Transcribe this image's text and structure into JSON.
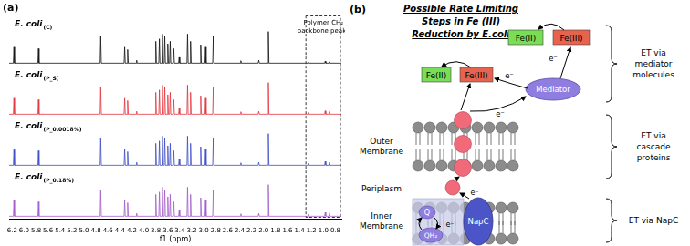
{
  "chart_data": {
    "type": "line",
    "panel_label": "(a)",
    "x_label": "f1 (ppm)",
    "x": [
      6.25,
      6.18,
      6.17,
      6.16,
      5.77,
      5.76,
      5.75,
      4.73,
      4.72,
      4.71,
      4.33,
      4.32,
      4.31,
      4.28,
      4.27,
      4.26,
      4.13,
      4.12,
      4.11,
      3.81,
      3.8,
      3.79,
      3.75,
      3.74,
      3.73,
      3.7,
      3.69,
      3.68,
      3.66,
      3.65,
      3.64,
      3.61,
      3.6,
      3.59,
      3.57,
      3.56,
      3.55,
      3.51,
      3.5,
      3.49,
      3.42,
      3.41,
      3.4,
      3.28,
      3.27,
      3.26,
      3.23,
      3.22,
      3.21,
      3.06,
      3.05,
      3.04,
      2.98,
      2.97,
      2.96,
      2.85,
      2.84,
      2.83,
      2.39,
      2.38,
      2.37,
      2.09,
      2.08,
      2.07,
      1.93,
      1.92,
      1.91,
      1.26,
      1.25,
      1.24,
      0.98,
      0.97,
      0.96,
      0.91,
      0.9,
      0.89,
      0.7
    ],
    "xlim": [
      6.25,
      0.7
    ],
    "xticks": [
      6.2,
      {
        "value": 6,
        "label": "6.0"
      },
      5.8,
      5.6,
      5.4,
      5.2,
      {
        "value": 5,
        "label": "5.0"
      },
      4.8,
      4.6,
      4.4,
      4.2,
      {
        "value": 4,
        "label": "4.0"
      },
      3.8,
      3.6,
      3.4,
      3.2,
      {
        "value": 3,
        "label": "3.0"
      },
      2.8,
      2.6,
      2.4,
      2.2,
      {
        "value": 2,
        "label": "2.0"
      },
      1.8,
      1.6,
      1.4,
      1.2,
      {
        "value": 1,
        "label": "1.0"
      },
      0.8
    ],
    "ylim": [
      -5,
      100
    ],
    "tick_labels": "x",
    "grid": false,
    "marker": "none",
    "series": [
      {
        "name": "E. coli(P_0.18%)",
        "color": "#a25bc9",
        "values": [
          0,
          0,
          33,
          0,
          0,
          30,
          0,
          0,
          55,
          0,
          0,
          33,
          0,
          0,
          28,
          0,
          0,
          6,
          0,
          0,
          45,
          0,
          0,
          50,
          0,
          0,
          60,
          0,
          0,
          55,
          0,
          0,
          40,
          0,
          0,
          45,
          0,
          0,
          30,
          0,
          0,
          12,
          0,
          0,
          60,
          0,
          0,
          45,
          0,
          0,
          38,
          0,
          0,
          33,
          0,
          0,
          55,
          0,
          0,
          5,
          0,
          0,
          6,
          0,
          0,
          65,
          0,
          0,
          5,
          0,
          0,
          8,
          0,
          0,
          7,
          0,
          0
        ]
      },
      {
        "name": "E. coli(P_0.0018%)",
        "color": "#3b4bc4",
        "values": [
          0,
          0,
          32,
          0,
          0,
          30,
          0,
          0,
          55,
          0,
          0,
          33,
          0,
          0,
          28,
          0,
          0,
          6,
          0,
          0,
          45,
          0,
          0,
          50,
          0,
          0,
          60,
          0,
          0,
          55,
          0,
          0,
          40,
          0,
          0,
          45,
          0,
          0,
          30,
          0,
          0,
          12,
          0,
          0,
          60,
          0,
          0,
          45,
          0,
          0,
          38,
          0,
          0,
          33,
          0,
          0,
          55,
          0,
          0,
          5,
          0,
          0,
          6,
          0,
          0,
          65,
          0,
          0,
          4,
          0,
          0,
          8,
          0,
          0,
          6,
          0,
          0
        ]
      },
      {
        "name": "E. coli(P_S)",
        "color": "#e3323c",
        "values": [
          0,
          0,
          33,
          0,
          0,
          30,
          0,
          0,
          55,
          0,
          0,
          33,
          0,
          0,
          28,
          0,
          0,
          6,
          0,
          0,
          45,
          0,
          0,
          50,
          0,
          0,
          60,
          0,
          0,
          55,
          0,
          0,
          40,
          0,
          0,
          45,
          0,
          0,
          30,
          0,
          0,
          12,
          0,
          0,
          60,
          0,
          0,
          45,
          0,
          0,
          38,
          0,
          0,
          33,
          0,
          0,
          55,
          0,
          0,
          5,
          0,
          0,
          6,
          0,
          0,
          65,
          0,
          0,
          4,
          0,
          0,
          7,
          0,
          0,
          6,
          0,
          0
        ]
      },
      {
        "name": "E. coli(C)",
        "color": "#111111",
        "values": [
          0,
          0,
          33,
          0,
          0,
          30,
          0,
          0,
          55,
          0,
          0,
          33,
          0,
          0,
          28,
          0,
          0,
          6,
          0,
          0,
          45,
          0,
          0,
          50,
          0,
          0,
          60,
          0,
          0,
          55,
          0,
          0,
          40,
          0,
          0,
          45,
          0,
          0,
          30,
          0,
          0,
          12,
          0,
          0,
          60,
          0,
          0,
          45,
          0,
          0,
          38,
          0,
          0,
          33,
          0,
          0,
          55,
          0,
          0,
          5,
          0,
          0,
          6,
          0,
          0,
          65,
          0,
          0,
          2,
          0,
          0,
          4,
          0,
          0,
          3,
          0,
          0
        ]
      }
    ],
    "annotation": {
      "text": [
        "Polymer CH₂",
        "backbone peaks"
      ],
      "x_range": [
        1.3,
        0.7
      ]
    }
  },
  "diagram": {
    "panel_label": "(b)",
    "title": [
      "Possible Rate Limiting",
      "Steps in Fe (III)",
      "Reduction by E.coli"
    ],
    "reduced": "Fe(II)",
    "oxidized": "Fe(III)",
    "mediator": "Mediator",
    "electron": "e⁻",
    "layers": {
      "outer": [
        "Outer",
        "Membrane"
      ],
      "periplasm": [
        "Periplasm"
      ],
      "inner": [
        "Inner",
        "Membrane"
      ]
    },
    "napc": "NapC",
    "quinone": "Q",
    "quinol": "QH₂",
    "steps": [
      [
        "ET via",
        "mediator",
        "molecules"
      ],
      [
        "ET via",
        "cascade",
        "proteins"
      ],
      [
        "ET via NapC"
      ]
    ]
  }
}
